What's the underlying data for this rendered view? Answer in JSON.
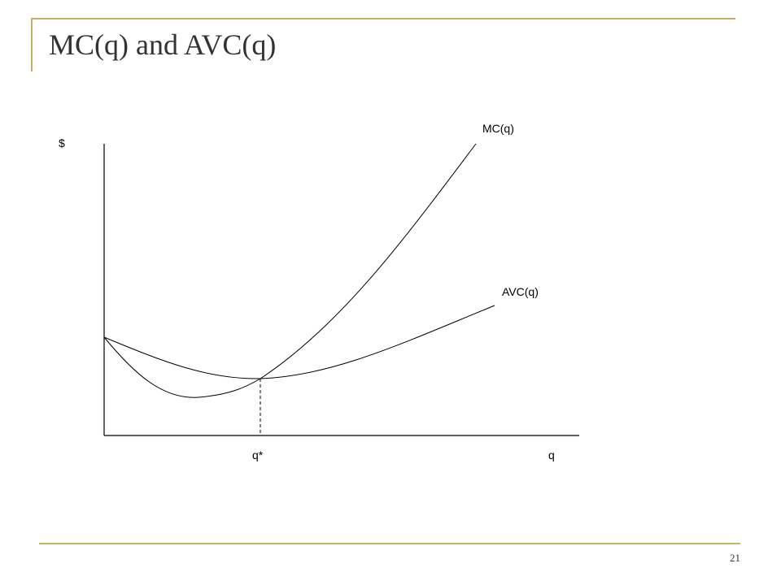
{
  "slide": {
    "title": "MC(q) and AVC(q)",
    "page_number": "21",
    "accent_color": "#c9b166"
  },
  "diagram": {
    "y_axis_label": "$",
    "x_axis_label": "q",
    "marker_label": "q*",
    "curves": {
      "mc_label": "MC(q)",
      "avc_label": "AVC(q)"
    }
  }
}
